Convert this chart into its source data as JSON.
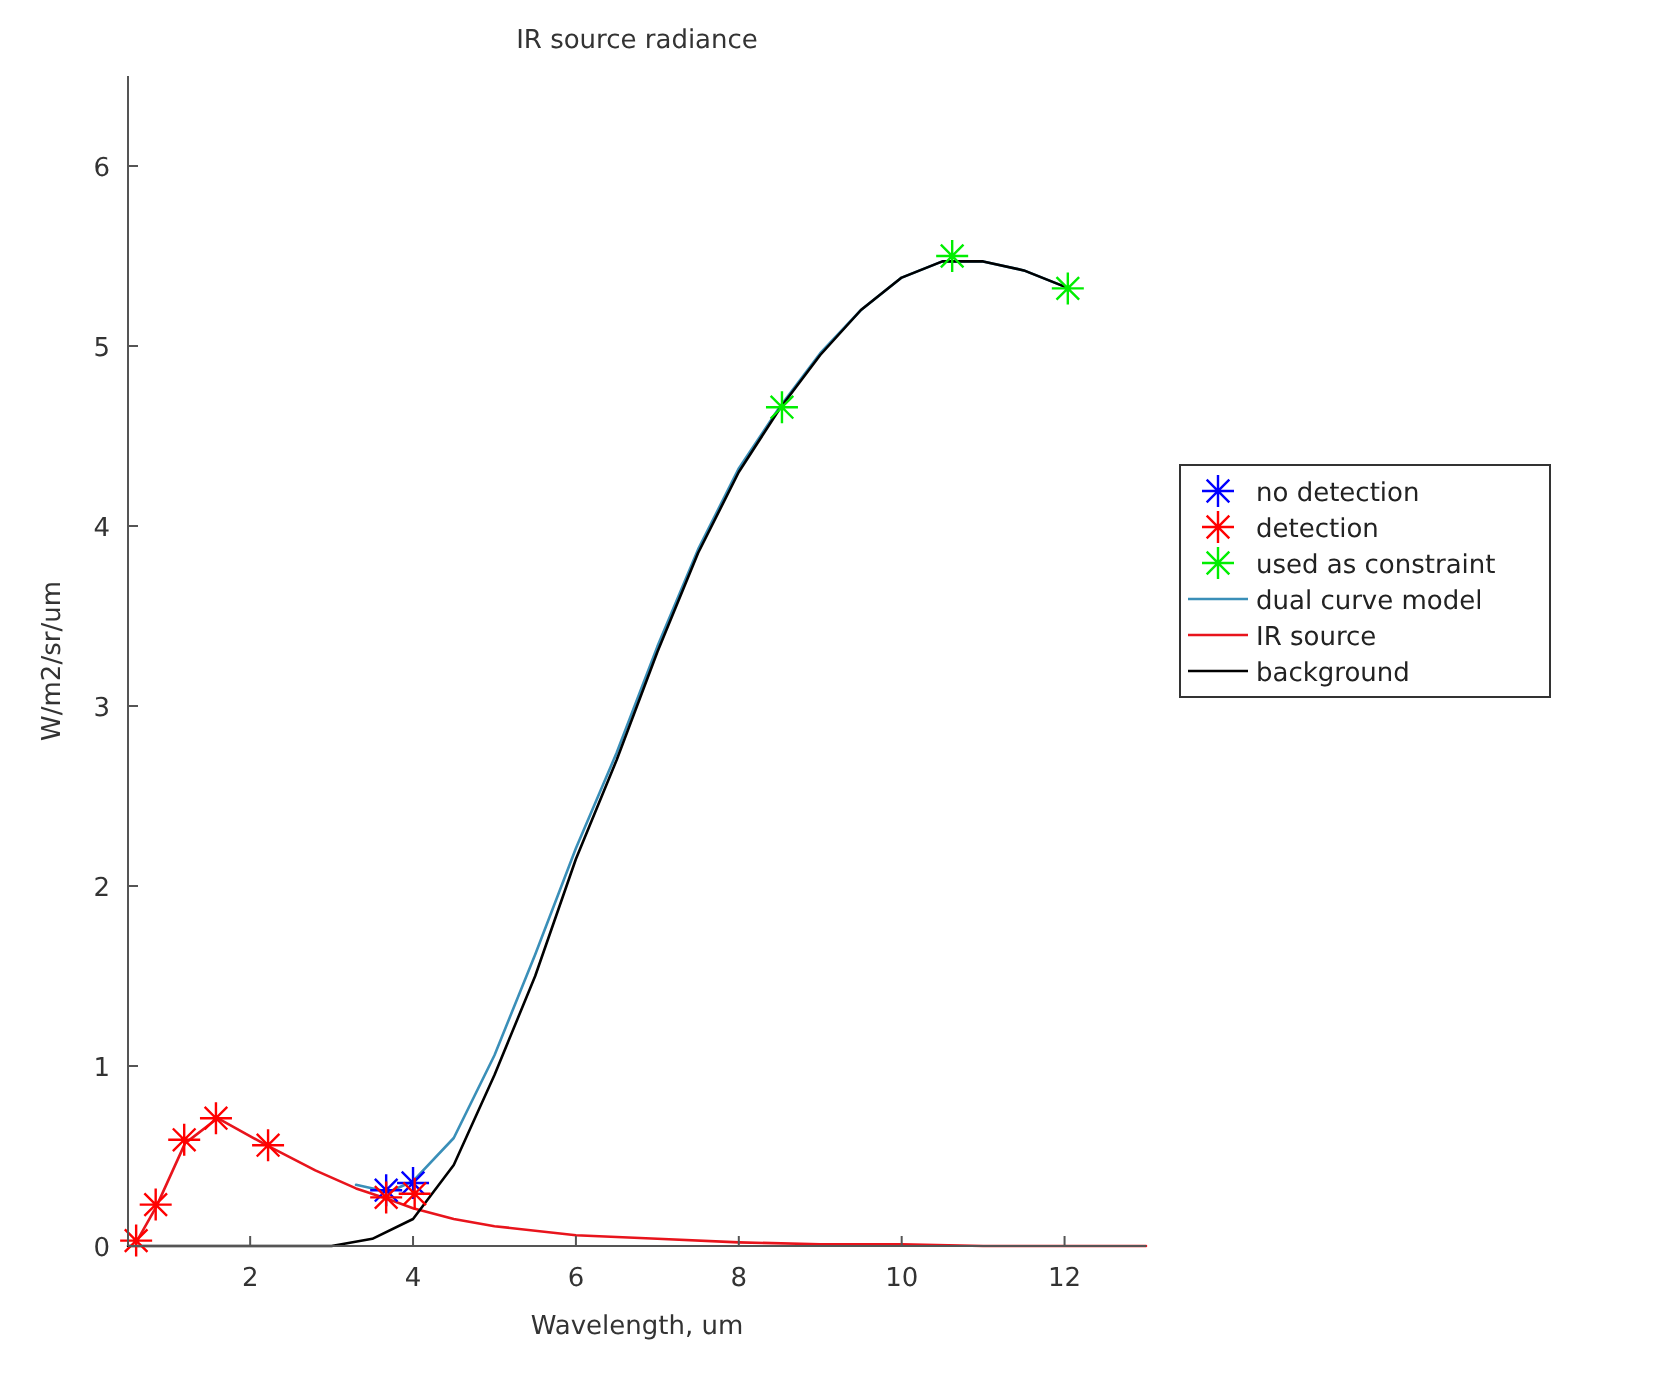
{
  "chart_data": {
    "type": "line",
    "title": "IR source radiance",
    "xlabel": "Wavelength, um",
    "ylabel": "W/m2/sr/um",
    "xlim": [
      0.5,
      13
    ],
    "xticks": [
      2,
      4,
      6,
      8,
      10,
      12
    ],
    "ylim": [
      0,
      6.5
    ],
    "yticks": [
      0,
      1,
      2,
      3,
      4,
      5,
      6
    ],
    "grid": false,
    "legend": "right",
    "series": [
      {
        "name": "no detection",
        "type": "scatter",
        "marker": "cross",
        "color": "#0000ff",
        "x": [
          3.67,
          4.0
        ],
        "values": [
          0.31,
          0.35
        ]
      },
      {
        "name": "detection",
        "type": "scatter",
        "marker": "cross",
        "color": "#ff0000",
        "x": [
          0.6,
          0.84,
          1.19,
          1.58,
          2.22,
          3.67,
          4.02
        ],
        "values": [
          0.03,
          0.23,
          0.59,
          0.71,
          0.56,
          0.27,
          0.29
        ]
      },
      {
        "name": "used as constraint",
        "type": "scatter",
        "marker": "cross",
        "color": "#00ee00",
        "x": [
          8.53,
          10.62,
          12.04
        ],
        "values": [
          4.66,
          5.5,
          5.32
        ]
      },
      {
        "name": "dual curve model",
        "type": "line",
        "marker": "none",
        "color": "#3a8fb8",
        "x": [
          3.3,
          3.7,
          4,
          4.5,
          5,
          5.5,
          6,
          6.5,
          7,
          7.5,
          8,
          8.5,
          9,
          9.5,
          10,
          10.5,
          11,
          11.5,
          12
        ],
        "values": [
          0.34,
          0.3,
          0.36,
          0.6,
          1.06,
          1.62,
          2.21,
          2.74,
          3.33,
          3.87,
          4.32,
          4.66,
          4.96,
          5.2,
          5.38,
          5.47,
          5.47,
          5.42,
          5.33
        ]
      },
      {
        "name": "IR source",
        "type": "line",
        "marker": "none",
        "color": "#e8141c",
        "x": [
          0.6,
          0.85,
          1.2,
          1.6,
          2.2,
          2.8,
          3.3,
          3.7,
          4,
          4.5,
          5,
          6,
          7,
          8,
          9,
          10,
          11,
          12,
          13
        ],
        "values": [
          0.02,
          0.22,
          0.57,
          0.71,
          0.56,
          0.42,
          0.32,
          0.26,
          0.21,
          0.15,
          0.11,
          0.06,
          0.04,
          0.02,
          0.01,
          0.01,
          0,
          0,
          0
        ]
      },
      {
        "name": "background",
        "type": "line",
        "marker": "none",
        "color": "#000000",
        "x": [
          0.5,
          3,
          3.5,
          4,
          4.5,
          5,
          5.5,
          6,
          6.5,
          7,
          7.5,
          8,
          8.5,
          9,
          9.5,
          10,
          10.5,
          11,
          11.5,
          12
        ],
        "values": [
          0,
          0,
          0.04,
          0.15,
          0.45,
          0.95,
          1.5,
          2.15,
          2.7,
          3.3,
          3.85,
          4.3,
          4.65,
          4.95,
          5.2,
          5.38,
          5.47,
          5.47,
          5.42,
          5.33
        ]
      }
    ]
  }
}
